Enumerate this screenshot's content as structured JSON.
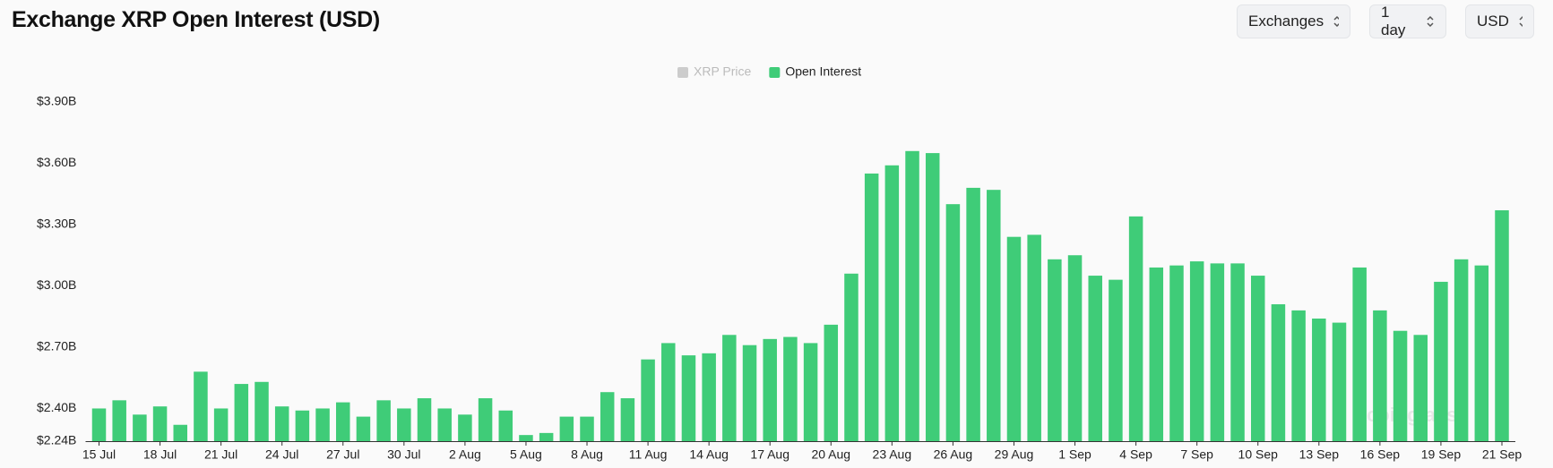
{
  "title": "Exchange XRP Open Interest (USD)",
  "controls": [
    "Exchanges",
    "1 day",
    "USD"
  ],
  "chart_data": {
    "type": "bar",
    "watermark": "coinglass",
    "legend_inactive": [
      {
        "name": "XRP Price",
        "color": "#cccccc"
      }
    ],
    "categories": [
      "15 Jul",
      null,
      null,
      "18 Jul",
      null,
      null,
      "21 Jul",
      null,
      null,
      "24 Jul",
      null,
      null,
      "27 Jul",
      null,
      null,
      "30 Jul",
      null,
      null,
      "2 Aug",
      null,
      null,
      "5 Aug",
      null,
      null,
      "8 Aug",
      null,
      null,
      "11 Aug",
      null,
      null,
      "14 Aug",
      null,
      null,
      "17 Aug",
      null,
      null,
      "20 Aug",
      null,
      null,
      "23 Aug",
      null,
      null,
      "26 Aug",
      null,
      null,
      "29 Aug",
      null,
      null,
      "1 Sep",
      null,
      null,
      "4 Sep",
      null,
      null,
      "7 Sep",
      null,
      null,
      "10 Sep",
      null,
      null,
      "13 Sep",
      null,
      null,
      "16 Sep",
      null,
      null,
      "19 Sep",
      null,
      null,
      "21 Sep"
    ],
    "series": [
      {
        "name": "Open Interest",
        "color": "#3fcc78",
        "values": [
          2.4,
          2.44,
          2.37,
          2.41,
          2.32,
          2.58,
          2.4,
          2.52,
          2.53,
          2.41,
          2.39,
          2.4,
          2.43,
          2.36,
          2.44,
          2.4,
          2.45,
          2.4,
          2.37,
          2.45,
          2.39,
          2.27,
          2.28,
          2.36,
          2.36,
          2.48,
          2.45,
          2.64,
          2.72,
          2.66,
          2.67,
          2.76,
          2.71,
          2.74,
          2.75,
          2.72,
          2.81,
          3.06,
          3.55,
          3.59,
          3.66,
          3.65,
          3.4,
          3.48,
          3.47,
          3.24,
          3.25,
          3.13,
          3.15,
          3.05,
          3.03,
          3.34,
          3.09,
          3.1,
          3.12,
          3.11,
          3.11,
          3.05,
          2.91,
          2.88,
          2.84,
          2.82,
          3.09,
          2.88,
          2.78,
          2.76,
          3.02,
          3.13,
          3.1,
          3.37
        ]
      }
    ],
    "ylim": [
      2.24,
      3.9
    ],
    "yticks": [
      {
        "value": 2.24,
        "label": "$2.24B"
      },
      {
        "value": 2.4,
        "label": "$2.40B"
      },
      {
        "value": 2.7,
        "label": "$2.70B"
      },
      {
        "value": 3.0,
        "label": "$3.00B"
      },
      {
        "value": 3.3,
        "label": "$3.30B"
      },
      {
        "value": 3.6,
        "label": "$3.60B"
      },
      {
        "value": 3.9,
        "label": "$3.90B"
      }
    ],
    "grid": false
  }
}
